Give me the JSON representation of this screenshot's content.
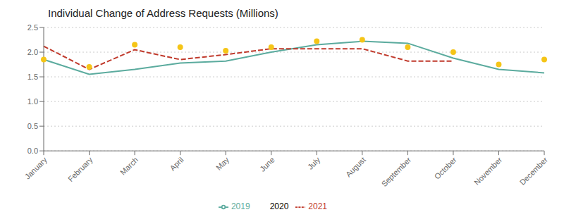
{
  "chart_data": {
    "type": "line",
    "title": "Individual Change of Address Requests (Millions)",
    "categories": [
      "January",
      "February",
      "March",
      "April",
      "May",
      "June",
      "July",
      "August",
      "September",
      "October",
      "November",
      "December"
    ],
    "series": [
      {
        "name": "2019",
        "color": "#5BAB9E",
        "line_style": "solid",
        "values": [
          1.85,
          1.55,
          1.65,
          1.78,
          1.82,
          2.0,
          2.15,
          2.22,
          2.18,
          1.88,
          1.65,
          1.58
        ]
      },
      {
        "name": "2020",
        "color": "#F5C518",
        "line_style": "none",
        "marker": "circle",
        "values": [
          1.85,
          1.7,
          2.15,
          2.1,
          2.03,
          2.1,
          2.22,
          2.25,
          2.1,
          2.0,
          1.75,
          1.85
        ]
      },
      {
        "name": "2021",
        "color": "#C0392B",
        "line_style": "dashed",
        "values": [
          2.12,
          1.65,
          2.05,
          1.85,
          1.95,
          2.07,
          2.07,
          2.07,
          1.82,
          1.82,
          null,
          null
        ]
      }
    ],
    "ylim": [
      0.0,
      2.5
    ],
    "yticks": [
      {
        "value": 0.0,
        "label": "0.0"
      },
      0.5,
      {
        "value": 1.0,
        "label": "1.0"
      },
      1.5,
      {
        "value": 2.0,
        "label": "2.0"
      },
      2.5
    ],
    "grid": true,
    "legend": "bottom"
  }
}
